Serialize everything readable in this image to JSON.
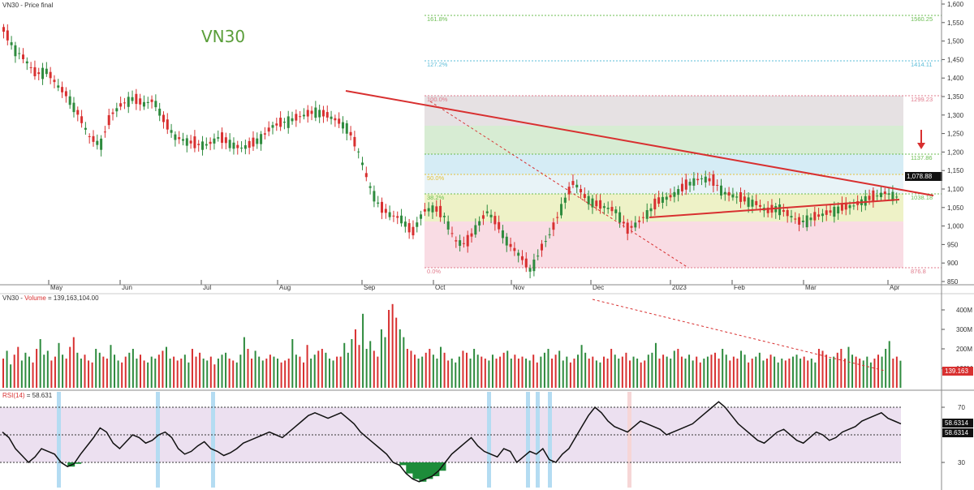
{
  "panels": {
    "price": {
      "title": "VN30 - Price final",
      "watermark": "VN30"
    },
    "volume": {
      "title_name": "VN30 - ",
      "title_vol": "Volume",
      "title_value": " = 139,163,104.00"
    },
    "rsi": {
      "title_name": "RSI(14)",
      "title_value": " = 58.631"
    }
  },
  "colors": {
    "up": "#2e8b3e",
    "down": "#d83030",
    "trend": "#d83030",
    "fib_grey": "#e6e1e3",
    "fib_green": "#d7ecd3",
    "fib_blue": "#d5ecf5",
    "fib_yellow": "#eef2c7",
    "fib_pink": "#f9dce4",
    "rsi_band": "#ece0f0",
    "rsi_highlight": "#b4dcf2"
  },
  "chart_data": [
    {
      "type": "candlestick",
      "title": "VN30 - Price final",
      "ylim": [
        840,
        1600
      ],
      "y_ticks": [
        "1,600",
        "1,550",
        "1,500",
        "1,450",
        "1,400",
        "1,350",
        "1,300",
        "1,250",
        "1,200",
        "1,150",
        "1,100",
        "1,050",
        "1,000",
        "950",
        "900",
        "850"
      ],
      "x_labels": [
        "May",
        "Jun",
        "Jul",
        "Aug",
        "Sep",
        "Oct",
        "Nov",
        "Dec",
        "2023",
        "Feb",
        "Mar",
        "Apr"
      ],
      "last_value_label": "1,078.88",
      "close_path": [
        1530,
        1480,
        1450,
        1410,
        1420,
        1380,
        1350,
        1300,
        1240,
        1220,
        1300,
        1330,
        1345,
        1330,
        1340,
        1280,
        1240,
        1230,
        1220,
        1220,
        1240,
        1225,
        1210,
        1220,
        1240,
        1270,
        1280,
        1290,
        1300,
        1310,
        1300,
        1285,
        1265,
        1200,
        1110,
        1050,
        1030,
        1020,
        980,
        1040,
        1050,
        1025,
        960,
        950,
        1000,
        1040,
        1000,
        950,
        920,
        880,
        940,
        990,
        1060,
        1120,
        1080,
        1060,
        1050,
        1040,
        990,
        1010,
        1040,
        1070,
        1080,
        1100,
        1120,
        1130,
        1120,
        1090,
        1080,
        1070,
        1060,
        1040,
        1050,
        1030,
        1010,
        1020,
        1030,
        1040,
        1050,
        1055,
        1070,
        1080,
        1090,
        1079
      ],
      "fibonacci": [
        {
          "label": "161.8%",
          "right_label": "1560.25"
        },
        {
          "label": "127.2%",
          "right_label": "1414.11"
        },
        {
          "label": "100.0%",
          "right_label": "1299.23"
        },
        {
          "label": "",
          "right_label": "1137.86"
        },
        {
          "label": "50.0%",
          "right_label": "1088.06"
        },
        {
          "label": "38.2%",
          "right_label": "1038.18"
        },
        {
          "label": "0.0%",
          "right_label": "876.8"
        }
      ],
      "annotations": [
        "downtrend line from Sep high",
        "rising support line",
        "red arrow pointing down"
      ]
    },
    {
      "type": "bar",
      "title": "VN30 - Volume = 139,163,104.00",
      "y_ticks": [
        "400M",
        "300M",
        "200M",
        "100M"
      ],
      "ylim": [
        0,
        450
      ],
      "last_value_label": "139.163",
      "values": [
        150,
        190,
        120,
        170,
        210,
        140,
        180,
        160,
        130,
        200,
        250,
        170,
        190,
        140,
        160,
        230,
        170,
        150,
        210,
        260,
        180,
        150,
        170,
        140,
        130,
        200,
        180,
        160,
        150,
        220,
        170,
        140,
        130,
        160,
        180,
        200,
        150,
        170,
        140,
        130,
        160,
        150,
        170,
        190,
        210,
        150,
        160,
        140,
        150,
        170,
        130,
        200,
        160,
        180,
        150,
        140,
        160,
        120,
        150,
        170,
        180,
        150,
        140,
        130,
        170,
        260,
        200,
        150,
        190,
        160,
        140,
        150,
        170,
        160,
        150,
        130,
        140,
        150,
        250,
        170,
        160,
        130,
        220,
        150,
        170,
        190,
        200,
        180,
        150,
        140,
        160,
        160,
        230,
        180,
        250,
        300,
        220,
        380,
        200,
        240,
        190,
        160,
        300,
        260,
        400,
        430,
        360,
        300,
        260,
        200,
        190,
        170,
        150,
        160,
        180,
        200,
        170,
        150,
        210,
        180,
        140,
        150,
        130,
        160,
        190,
        180,
        150,
        200,
        170,
        160,
        150,
        140,
        170,
        150,
        160,
        180,
        190,
        150,
        170,
        150,
        160,
        150,
        140,
        170,
        130,
        160,
        180,
        200,
        150,
        170,
        190,
        140,
        160,
        130,
        150,
        170,
        220,
        180,
        150,
        160,
        140,
        130,
        160,
        150,
        200,
        170,
        150,
        160,
        180,
        140,
        160,
        150,
        130,
        140,
        170,
        180,
        230,
        150,
        170,
        160,
        150,
        190,
        200,
        160,
        150,
        170,
        140,
        160,
        130,
        150,
        160,
        170,
        180,
        150,
        200,
        170,
        140,
        160,
        150,
        190,
        170,
        130,
        150,
        160,
        180,
        140,
        150,
        170,
        160,
        130,
        150,
        140,
        150,
        160,
        170,
        150,
        160,
        140,
        150,
        130,
        200,
        190,
        170,
        150,
        160,
        180,
        200,
        150,
        210,
        170,
        160,
        150,
        140,
        160,
        130,
        150,
        170,
        160,
        200,
        240,
        150,
        160,
        139
      ],
      "annotations": [
        "dotted declining line from volume peak"
      ]
    },
    {
      "type": "line",
      "title": "RSI(14) = 58.631",
      "ylim": [
        10,
        90
      ],
      "y_ticks": [
        "70",
        "30"
      ],
      "bands": [
        30,
        70
      ],
      "last_value_label": "58.6314",
      "values": [
        52,
        48,
        40,
        35,
        30,
        34,
        40,
        38,
        36,
        30,
        27,
        29,
        36,
        42,
        48,
        55,
        52,
        44,
        40,
        45,
        50,
        48,
        44,
        46,
        50,
        52,
        48,
        40,
        36,
        38,
        42,
        45,
        40,
        38,
        35,
        37,
        40,
        44,
        46,
        48,
        50,
        52,
        50,
        48,
        52,
        56,
        60,
        64,
        66,
        64,
        62,
        64,
        66,
        62,
        58,
        52,
        48,
        44,
        40,
        36,
        30,
        28,
        22,
        18,
        16,
        18,
        20,
        24,
        30,
        36,
        40,
        44,
        48,
        42,
        38,
        36,
        34,
        40,
        38,
        30,
        34,
        38,
        36,
        40,
        32,
        30,
        36,
        40,
        48,
        56,
        64,
        70,
        66,
        60,
        56,
        54,
        52,
        56,
        60,
        58,
        56,
        54,
        50,
        52,
        54,
        56,
        58,
        62,
        66,
        70,
        74,
        70,
        64,
        58,
        54,
        50,
        46,
        44,
        48,
        52,
        54,
        50,
        46,
        44,
        48,
        52,
        50,
        46,
        48,
        52,
        54,
        56,
        60,
        62,
        64,
        66,
        62,
        60,
        58
      ]
    }
  ]
}
